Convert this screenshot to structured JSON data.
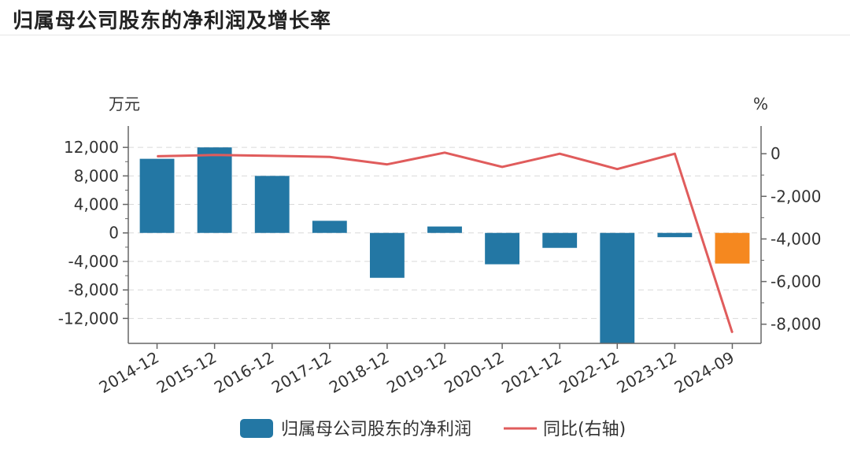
{
  "title": "归属母公司股东的净利润及增长率",
  "chart_data": {
    "type": "bar",
    "categories": [
      "2014-12",
      "2015-12",
      "2016-12",
      "2017-12",
      "2018-12",
      "2019-12",
      "2020-12",
      "2021-12",
      "2022-12",
      "2023-12",
      "2024-09"
    ],
    "series": [
      {
        "name": "归属母公司股东的净利润",
        "type": "bar",
        "axis": "left",
        "color": "#2377a4",
        "highlight_color": "#f5881f",
        "highlight_index": 10,
        "values": [
          10400,
          12000,
          8000,
          1700,
          -6300,
          900,
          -4400,
          -2100,
          -15500,
          -600,
          -4300
        ]
      },
      {
        "name": "同比(右轴)",
        "type": "line",
        "axis": "right",
        "color": "#e05c5c",
        "values": [
          -120,
          -60,
          -100,
          -150,
          -500,
          50,
          -620,
          0,
          -720,
          0,
          -8400
        ]
      }
    ],
    "left_axis": {
      "unit_label": "万元",
      "ylim": [
        -15500,
        15000
      ],
      "ticks": [
        12000,
        8000,
        4000,
        0,
        -4000,
        -8000,
        -12000
      ],
      "tick_labels": [
        "12,000",
        "8,000",
        "4,000",
        "0",
        "-4,000",
        "-8,000",
        "-12,000"
      ]
    },
    "right_axis": {
      "unit_label": "%",
      "ylim": [
        -8900,
        1300
      ],
      "ticks": [
        0,
        -2000,
        -4000,
        -6000,
        -8000
      ],
      "tick_labels": [
        "0",
        "-2,000",
        "-4,000",
        "-6,000",
        "-8,000"
      ]
    },
    "grid": true,
    "legend_position": "bottom"
  }
}
